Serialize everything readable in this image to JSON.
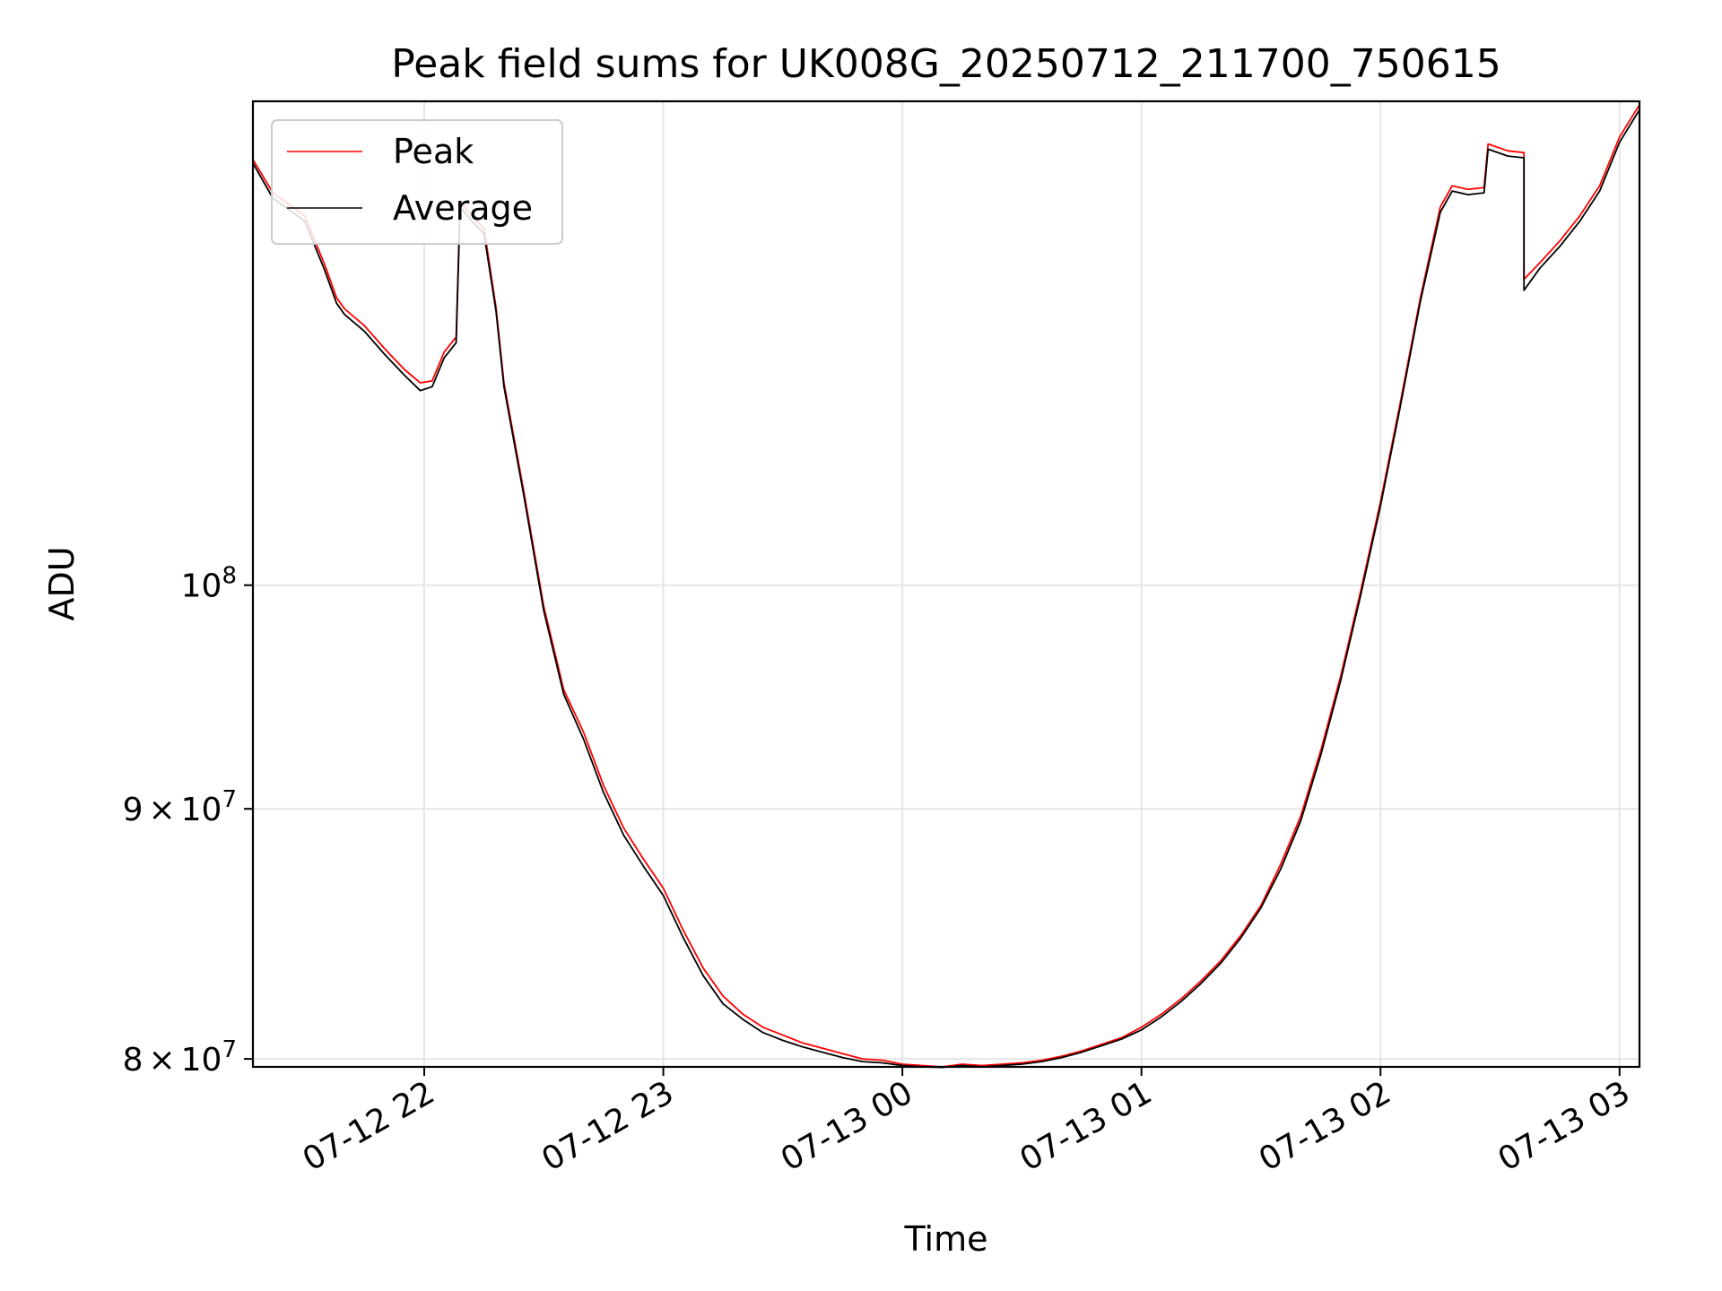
{
  "chart_data": {
    "type": "line",
    "title": "Peak field sums for UK008G_20250712_211700_750615",
    "xlabel": "Time",
    "ylabel": "ADU",
    "yscale": "log",
    "grid": true,
    "legend_position": "upper-left",
    "x_range": [
      "2025-07-12 21:17",
      "2025-07-13 03:05"
    ],
    "y_range": [
      79700000,
      125600000
    ],
    "x_ticks": [
      {
        "t": "2025-07-12 22:00",
        "label": "07-12 22"
      },
      {
        "t": "2025-07-12 23:00",
        "label": "07-12 23"
      },
      {
        "t": "2025-07-13 00:00",
        "label": "07-13 00"
      },
      {
        "t": "2025-07-13 01:00",
        "label": "07-13 01"
      },
      {
        "t": "2025-07-13 02:00",
        "label": "07-13 02"
      },
      {
        "t": "2025-07-13 03:00",
        "label": "07-13 03"
      }
    ],
    "y_ticks": [
      {
        "value": 80000000,
        "mantissa": "8",
        "base": "10",
        "exp": "7"
      },
      {
        "value": 90000000,
        "mantissa": "9",
        "base": "10",
        "exp": "7"
      },
      {
        "value": 100000000,
        "mantissa": "",
        "base": "10",
        "exp": "8"
      }
    ],
    "series": [
      {
        "name": "Peak",
        "color": "#ff0000",
        "points": [
          [
            "2025-07-12 21:17",
            122200000
          ],
          [
            "2025-07-12 21:22",
            120300000
          ],
          [
            "2025-07-12 21:27",
            119500000
          ],
          [
            "2025-07-12 21:30",
            119000000
          ],
          [
            "2025-07-12 21:35",
            116300000
          ],
          [
            "2025-07-12 21:38",
            114500000
          ],
          [
            "2025-07-12 21:40",
            113900000
          ],
          [
            "2025-07-12 21:45",
            113000000
          ],
          [
            "2025-07-12 21:50",
            111800000
          ],
          [
            "2025-07-12 21:55",
            110700000
          ],
          [
            "2025-07-12 21:59",
            110000000
          ],
          [
            "2025-07-12 22:02",
            110100000
          ],
          [
            "2025-07-12 22:05",
            111600000
          ],
          [
            "2025-07-12 22:08",
            112400000
          ],
          [
            "2025-07-12 22:09",
            119800000
          ],
          [
            "2025-07-12 22:12",
            119000000
          ],
          [
            "2025-07-12 22:15",
            118300000
          ],
          [
            "2025-07-12 22:18",
            114000000
          ],
          [
            "2025-07-12 22:20",
            110000000
          ],
          [
            "2025-07-12 22:25",
            104500000
          ],
          [
            "2025-07-12 22:30",
            99000000
          ],
          [
            "2025-07-12 22:35",
            95200000
          ],
          [
            "2025-07-12 22:40",
            93300000
          ],
          [
            "2025-07-12 22:45",
            91000000
          ],
          [
            "2025-07-12 22:50",
            89200000
          ],
          [
            "2025-07-12 22:55",
            87900000
          ],
          [
            "2025-07-12 23:00",
            86700000
          ],
          [
            "2025-07-12 23:05",
            85000000
          ],
          [
            "2025-07-12 23:10",
            83500000
          ],
          [
            "2025-07-12 23:15",
            82400000
          ],
          [
            "2025-07-12 23:20",
            81700000
          ],
          [
            "2025-07-12 23:25",
            81200000
          ],
          [
            "2025-07-12 23:30",
            80900000
          ],
          [
            "2025-07-12 23:35",
            80600000
          ],
          [
            "2025-07-12 23:40",
            80400000
          ],
          [
            "2025-07-12 23:45",
            80200000
          ],
          [
            "2025-07-12 23:50",
            80000000
          ],
          [
            "2025-07-12 23:55",
            79950000
          ],
          [
            "2025-07-13 00:00",
            79800000
          ],
          [
            "2025-07-13 00:05",
            79750000
          ],
          [
            "2025-07-13 00:10",
            79700000
          ],
          [
            "2025-07-13 00:15",
            79800000
          ],
          [
            "2025-07-13 00:20",
            79750000
          ],
          [
            "2025-07-13 00:25",
            79800000
          ],
          [
            "2025-07-13 00:30",
            79850000
          ],
          [
            "2025-07-13 00:35",
            79950000
          ],
          [
            "2025-07-13 00:40",
            80100000
          ],
          [
            "2025-07-13 00:45",
            80300000
          ],
          [
            "2025-07-13 00:50",
            80550000
          ],
          [
            "2025-07-13 00:55",
            80800000
          ],
          [
            "2025-07-13 01:00",
            81200000
          ],
          [
            "2025-07-13 01:05",
            81700000
          ],
          [
            "2025-07-13 01:10",
            82300000
          ],
          [
            "2025-07-13 01:15",
            83000000
          ],
          [
            "2025-07-13 01:20",
            83800000
          ],
          [
            "2025-07-13 01:25",
            84800000
          ],
          [
            "2025-07-13 01:30",
            86000000
          ],
          [
            "2025-07-13 01:35",
            87700000
          ],
          [
            "2025-07-13 01:40",
            89700000
          ],
          [
            "2025-07-13 01:45",
            92500000
          ],
          [
            "2025-07-13 01:50",
            95800000
          ],
          [
            "2025-07-13 01:55",
            99700000
          ],
          [
            "2025-07-13 02:00",
            104000000
          ],
          [
            "2025-07-13 02:05",
            109000000
          ],
          [
            "2025-07-13 02:10",
            114500000
          ],
          [
            "2025-07-13 02:15",
            119500000
          ],
          [
            "2025-07-13 02:18",
            120700000
          ],
          [
            "2025-07-13 02:22",
            120500000
          ],
          [
            "2025-07-13 02:26",
            120600000
          ],
          [
            "2025-07-13 02:27",
            123100000
          ],
          [
            "2025-07-13 02:32",
            122700000
          ],
          [
            "2025-07-13 02:36",
            122600000
          ],
          [
            "2025-07-13 02:36",
            115500000
          ],
          [
            "2025-07-13 02:40",
            116400000
          ],
          [
            "2025-07-13 02:45",
            117600000
          ],
          [
            "2025-07-13 02:50",
            119000000
          ],
          [
            "2025-07-13 02:55",
            120700000
          ],
          [
            "2025-07-13 03:00",
            123500000
          ],
          [
            "2025-07-13 03:05",
            125400000
          ]
        ]
      },
      {
        "name": "Average",
        "color": "#000000",
        "points": [
          [
            "2025-07-12 21:17",
            122000000
          ],
          [
            "2025-07-12 21:22",
            120000000
          ],
          [
            "2025-07-12 21:27",
            119200000
          ],
          [
            "2025-07-12 21:30",
            118700000
          ],
          [
            "2025-07-12 21:35",
            116000000
          ],
          [
            "2025-07-12 21:38",
            114200000
          ],
          [
            "2025-07-12 21:40",
            113600000
          ],
          [
            "2025-07-12 21:45",
            112700000
          ],
          [
            "2025-07-12 21:50",
            111500000
          ],
          [
            "2025-07-12 21:55",
            110400000
          ],
          [
            "2025-07-12 21:59",
            109600000
          ],
          [
            "2025-07-12 22:02",
            109800000
          ],
          [
            "2025-07-12 22:05",
            111300000
          ],
          [
            "2025-07-12 22:08",
            112100000
          ],
          [
            "2025-07-12 22:09",
            119500000
          ],
          [
            "2025-07-12 22:12",
            118700000
          ],
          [
            "2025-07-12 22:15",
            118000000
          ],
          [
            "2025-07-12 22:18",
            113800000
          ],
          [
            "2025-07-12 22:20",
            109800000
          ],
          [
            "2025-07-12 22:25",
            104300000
          ],
          [
            "2025-07-12 22:30",
            98800000
          ],
          [
            "2025-07-12 22:35",
            95000000
          ],
          [
            "2025-07-12 22:40",
            93000000
          ],
          [
            "2025-07-12 22:45",
            90700000
          ],
          [
            "2025-07-12 22:50",
            88900000
          ],
          [
            "2025-07-12 22:55",
            87600000
          ],
          [
            "2025-07-12 23:00",
            86400000
          ],
          [
            "2025-07-12 23:05",
            84700000
          ],
          [
            "2025-07-12 23:10",
            83200000
          ],
          [
            "2025-07-12 23:15",
            82100000
          ],
          [
            "2025-07-12 23:20",
            81500000
          ],
          [
            "2025-07-12 23:25",
            81000000
          ],
          [
            "2025-07-12 23:30",
            80700000
          ],
          [
            "2025-07-12 23:35",
            80450000
          ],
          [
            "2025-07-12 23:40",
            80250000
          ],
          [
            "2025-07-12 23:45",
            80050000
          ],
          [
            "2025-07-12 23:50",
            79900000
          ],
          [
            "2025-07-12 23:55",
            79850000
          ],
          [
            "2025-07-13 00:00",
            79750000
          ],
          [
            "2025-07-13 00:05",
            79700000
          ],
          [
            "2025-07-13 00:10",
            79680000
          ],
          [
            "2025-07-13 00:15",
            79750000
          ],
          [
            "2025-07-13 00:20",
            79700000
          ],
          [
            "2025-07-13 00:25",
            79750000
          ],
          [
            "2025-07-13 00:30",
            79800000
          ],
          [
            "2025-07-13 00:35",
            79900000
          ],
          [
            "2025-07-13 00:40",
            80050000
          ],
          [
            "2025-07-13 00:45",
            80250000
          ],
          [
            "2025-07-13 00:50",
            80500000
          ],
          [
            "2025-07-13 00:55",
            80750000
          ],
          [
            "2025-07-13 01:00",
            81100000
          ],
          [
            "2025-07-13 01:05",
            81600000
          ],
          [
            "2025-07-13 01:10",
            82200000
          ],
          [
            "2025-07-13 01:15",
            82900000
          ],
          [
            "2025-07-13 01:20",
            83700000
          ],
          [
            "2025-07-13 01:25",
            84700000
          ],
          [
            "2025-07-13 01:30",
            85900000
          ],
          [
            "2025-07-13 01:35",
            87500000
          ],
          [
            "2025-07-13 01:40",
            89500000
          ],
          [
            "2025-07-13 01:45",
            92300000
          ],
          [
            "2025-07-13 01:50",
            95600000
          ],
          [
            "2025-07-13 01:55",
            99500000
          ],
          [
            "2025-07-13 02:00",
            103800000
          ],
          [
            "2025-07-13 02:05",
            108800000
          ],
          [
            "2025-07-13 02:10",
            114300000
          ],
          [
            "2025-07-13 02:15",
            119200000
          ],
          [
            "2025-07-13 02:18",
            120400000
          ],
          [
            "2025-07-13 02:22",
            120200000
          ],
          [
            "2025-07-13 02:26",
            120300000
          ],
          [
            "2025-07-13 02:27",
            122800000
          ],
          [
            "2025-07-13 02:32",
            122400000
          ],
          [
            "2025-07-13 02:36",
            122300000
          ],
          [
            "2025-07-13 02:36",
            114900000
          ],
          [
            "2025-07-13 02:40",
            116100000
          ],
          [
            "2025-07-13 02:45",
            117300000
          ],
          [
            "2025-07-13 02:50",
            118700000
          ],
          [
            "2025-07-13 02:55",
            120400000
          ],
          [
            "2025-07-13 03:00",
            123200000
          ],
          [
            "2025-07-13 03:05",
            125100000
          ]
        ]
      }
    ]
  }
}
